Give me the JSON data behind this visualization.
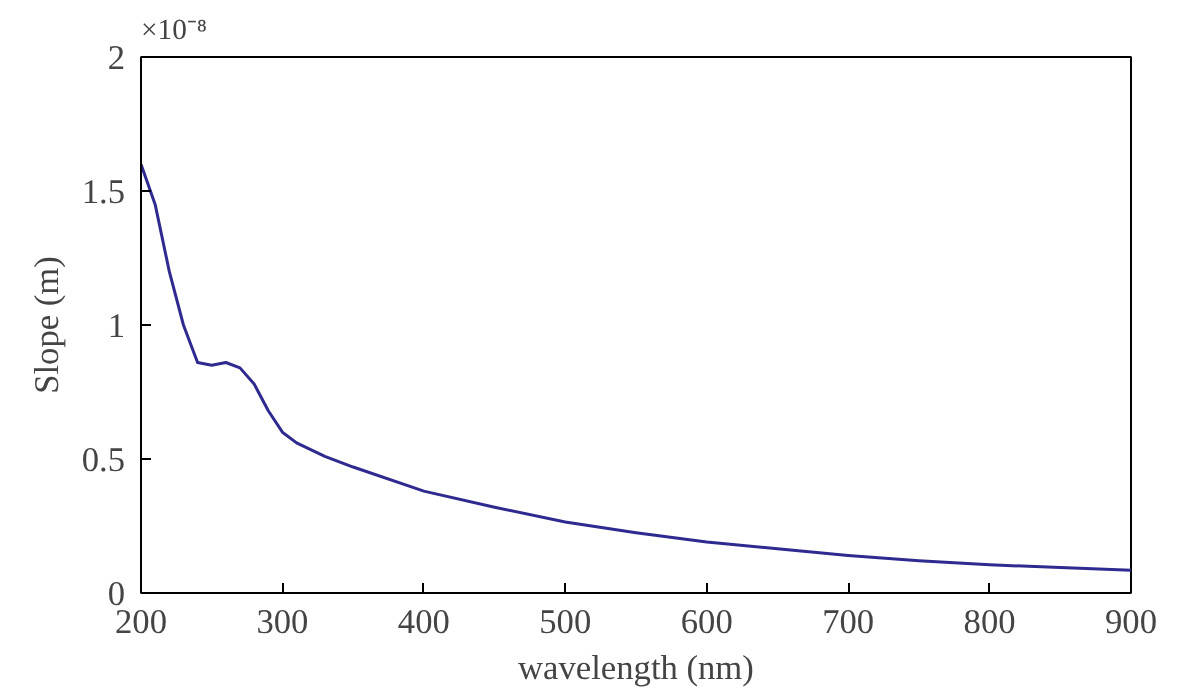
{
  "chart_data": {
    "type": "line",
    "xlabel": "wavelength (nm)",
    "ylabel": "Slope (m)",
    "annotations": [
      "×10⁻⁸"
    ],
    "x": [
      200,
      210,
      220,
      230,
      240,
      250,
      260,
      270,
      280,
      290,
      300,
      310,
      330,
      350,
      400,
      450,
      500,
      550,
      600,
      650,
      700,
      750,
      800,
      850,
      900
    ],
    "series": [
      {
        "color": "#2e2a8f",
        "values": [
          1.6,
          1.45,
          1.2,
          1.0,
          0.86,
          0.85,
          0.86,
          0.84,
          0.78,
          0.68,
          0.6,
          0.56,
          0.51,
          0.47,
          0.38,
          0.32,
          0.265,
          0.225,
          0.19,
          0.165,
          0.14,
          0.12,
          0.105,
          0.095,
          0.085
        ]
      }
    ],
    "xlim": [
      200,
      900
    ],
    "ylim": [
      0,
      2
    ],
    "xticks": [
      200,
      300,
      400,
      500,
      600,
      700,
      800,
      900
    ],
    "yticks": [
      {
        "value": 0,
        "label": "0"
      },
      0.5,
      {
        "value": 1,
        "label": "1"
      },
      1.5,
      {
        "value": 2,
        "label": "2"
      }
    ],
    "grid": false,
    "marker": "none",
    "line_style": "solid"
  }
}
